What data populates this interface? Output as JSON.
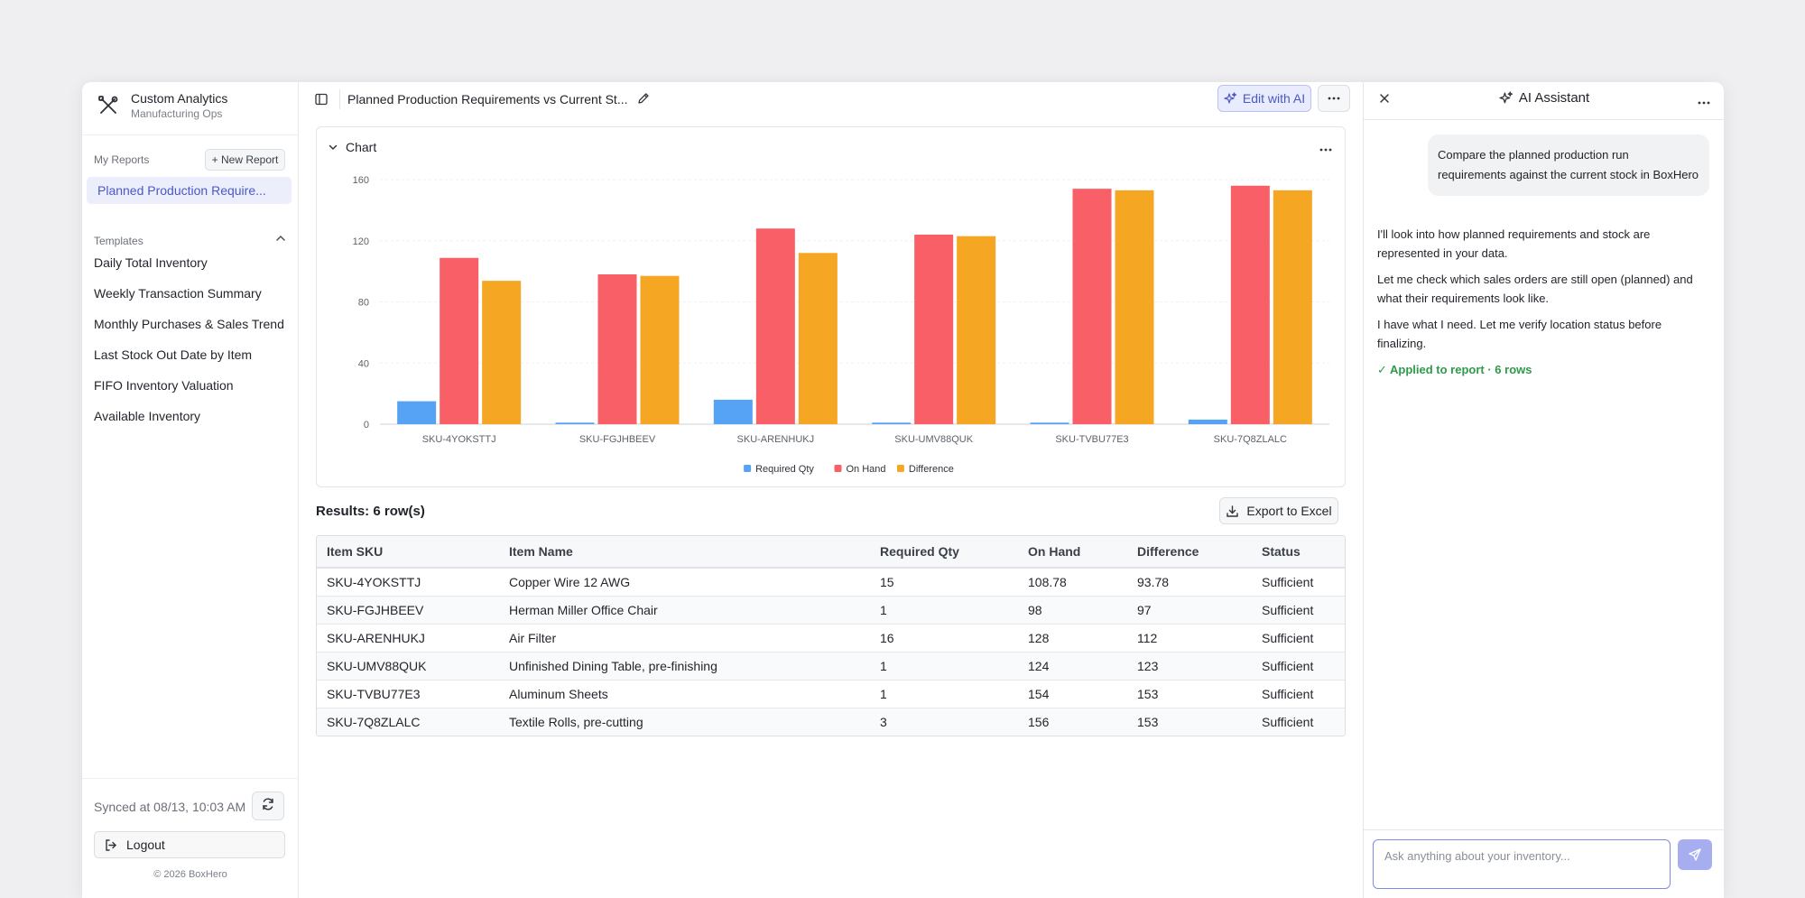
{
  "brand": {
    "title": "Custom Analytics",
    "subtitle": "Manufacturing Ops"
  },
  "sidebar": {
    "my_reports_label": "My Reports",
    "new_report_label": "+ New Report",
    "active_report": "Planned Production Require...",
    "templates_label": "Templates",
    "templates": [
      "Daily Total Inventory",
      "Weekly Transaction Summary",
      "Monthly Purchases & Sales Trend",
      "Last Stock Out Date by Item",
      "FIFO Inventory Valuation",
      "Available Inventory"
    ],
    "synced": "Synced at 08/13, 10:03 AM",
    "logout_label": "Logout",
    "copyright": "© 2026 BoxHero"
  },
  "header": {
    "report_title": "Planned Production Requirements vs Current St...",
    "edit_ai_label": "Edit with AI"
  },
  "chart_section": {
    "label": "Chart"
  },
  "chart_data": {
    "type": "bar",
    "categories": [
      "SKU-4YOKSTTJ",
      "SKU-FGJHBEEV",
      "SKU-ARENHUKJ",
      "SKU-UMV88QUK",
      "SKU-TVBU77E3",
      "SKU-7Q8ZLALC"
    ],
    "series": [
      {
        "name": "Required Qty",
        "color": "#56a2f4",
        "values": [
          15,
          1,
          16,
          1,
          1,
          3
        ]
      },
      {
        "name": "On Hand",
        "color": "#f85f66",
        "values": [
          108.78,
          98,
          128,
          124,
          154,
          156
        ]
      },
      {
        "name": "Difference",
        "color": "#f5a623",
        "values": [
          93.78,
          97,
          112,
          123,
          153,
          153
        ]
      }
    ],
    "ylim": [
      0,
      160
    ],
    "yticks": [
      "0",
      "40",
      "80",
      "120",
      "160"
    ],
    "legend_position": "bottom",
    "grid": true
  },
  "results": {
    "label": "Results: 6 row(s)",
    "export_label": "Export to Excel"
  },
  "table": {
    "columns": [
      "Item SKU",
      "Item Name",
      "Required Qty",
      "On Hand",
      "Difference",
      "Status"
    ],
    "rows": [
      [
        "SKU-4YOKSTTJ",
        "Copper Wire 12 AWG",
        "15",
        "108.78",
        "93.78",
        "Sufficient"
      ],
      [
        "SKU-FGJHBEEV",
        "Herman Miller Office Chair",
        "1",
        "98",
        "97",
        "Sufficient"
      ],
      [
        "SKU-ARENHUKJ",
        "Air Filter",
        "16",
        "128",
        "112",
        "Sufficient"
      ],
      [
        "SKU-UMV88QUK",
        "Unfinished Dining Table, pre-finishing",
        "1",
        "124",
        "123",
        "Sufficient"
      ],
      [
        "SKU-TVBU77E3",
        "Aluminum Sheets",
        "1",
        "154",
        "153",
        "Sufficient"
      ],
      [
        "SKU-7Q8ZLALC",
        "Textile Rolls, pre-cutting",
        "3",
        "156",
        "153",
        "Sufficient"
      ]
    ]
  },
  "ai": {
    "title": "AI Assistant",
    "user_message": "Compare the planned production run requirements against the current stock in BoxHero",
    "replies": [
      "I'll look into how planned requirements and stock are represented in your data.",
      "Let me check which sales orders are still open (planned) and what their requirements look like.",
      "I have what I need. Let me verify location status before finalizing."
    ],
    "applied": "✓ Applied to report · 6 rows",
    "input_placeholder": "Ask anything about your inventory..."
  }
}
